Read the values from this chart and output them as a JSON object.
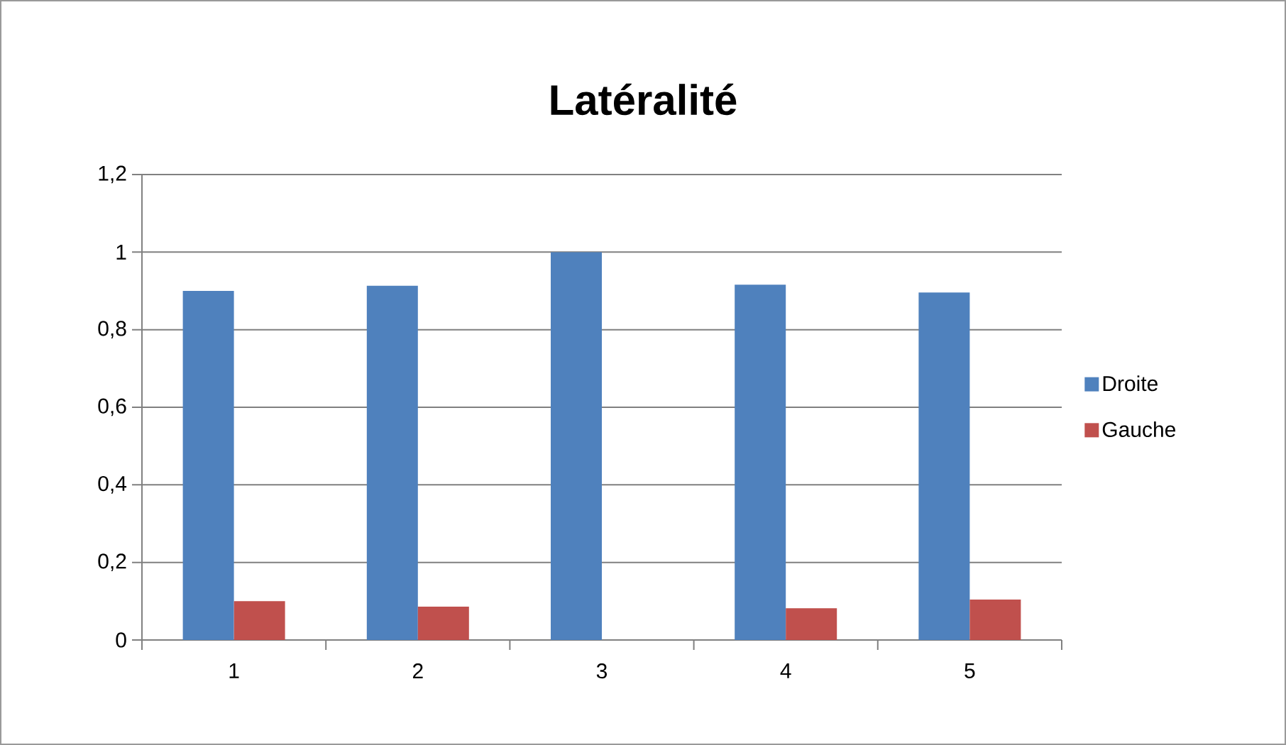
{
  "chart_data": {
    "type": "bar",
    "title": "Latéralité",
    "categories": [
      "1",
      "2",
      "3",
      "4",
      "5"
    ],
    "series": [
      {
        "name": "Droite",
        "color": "#4f81bd",
        "values": [
          0.9,
          0.913,
          1,
          0.916,
          0.896
        ]
      },
      {
        "name": "Gauche",
        "color": "#c0504d",
        "values": [
          0.1,
          0.086,
          0,
          0.082,
          0.104
        ]
      }
    ],
    "ylim": [
      0,
      1.2
    ],
    "yticks": [
      0,
      {
        "value": 0.2,
        "label": "0,2"
      },
      {
        "value": 0.4,
        "label": "0,4"
      },
      {
        "value": 0.6,
        "label": "0,6"
      },
      {
        "value": 0.8,
        "label": "0,8"
      },
      1,
      {
        "value": 1.2,
        "label": "1,2"
      }
    ],
    "grid": "y",
    "legend": "right"
  }
}
